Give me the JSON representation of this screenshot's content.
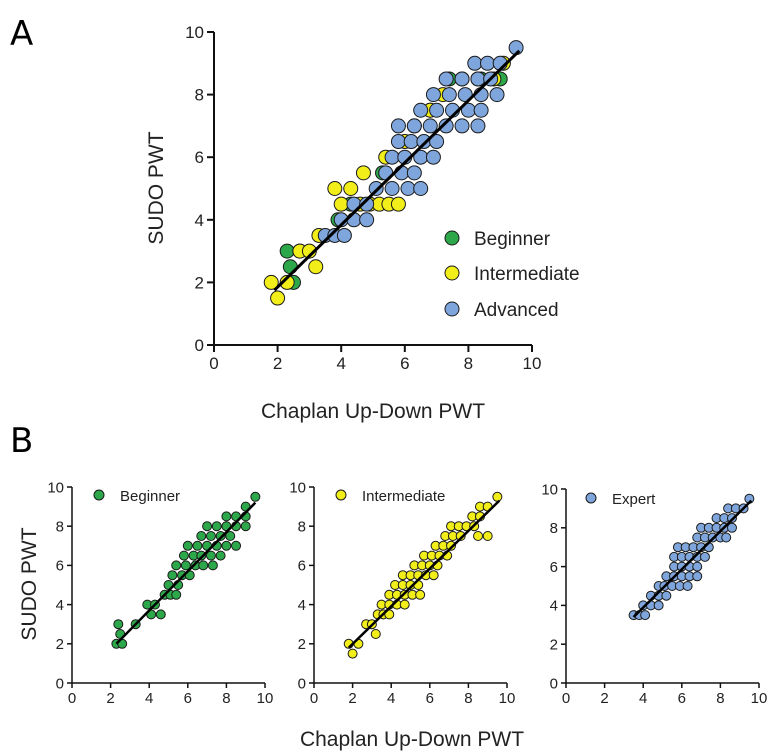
{
  "colors": {
    "beginner": "#2ca84a",
    "intermediate": "#f2ee1a",
    "advanced": "#7fa6dc",
    "outline": "#1a1a1a",
    "fit_line": "#000000"
  },
  "chart_data": [
    {
      "panel": "A",
      "type": "scatter",
      "xlabel": "Chaplan Up-Down PWT",
      "ylabel": "SUDO PWT",
      "xlim": [
        0,
        10
      ],
      "ylim": [
        0,
        10
      ],
      "xticks": [
        "0",
        "2",
        "4",
        "6",
        "8",
        "10"
      ],
      "yticks": [
        "0",
        "2",
        "4",
        "6",
        "8",
        "10"
      ],
      "legend_position": "lower-right",
      "grid": false,
      "fit_line": {
        "x": [
          1.9,
          9.6
        ],
        "y": [
          1.75,
          9.4
        ]
      },
      "series": [
        {
          "name": "Beginner",
          "color_key": "beginner",
          "points": [
            [
              2.3,
              3.0
            ],
            [
              2.4,
              2.5
            ],
            [
              2.5,
              2.0
            ],
            [
              2.7,
              3.0
            ],
            [
              3.9,
              4.0
            ],
            [
              4.3,
              4.5
            ],
            [
              5.3,
              5.5
            ],
            [
              6.8,
              7.5
            ],
            [
              7.4,
              8.5
            ],
            [
              8.4,
              8.5
            ],
            [
              9.0,
              8.5
            ]
          ]
        },
        {
          "name": "Intermediate",
          "color_key": "intermediate",
          "points": [
            [
              1.8,
              2.0
            ],
            [
              2.0,
              1.5
            ],
            [
              2.3,
              2.0
            ],
            [
              2.7,
              3.0
            ],
            [
              3.0,
              3.0
            ],
            [
              3.2,
              2.5
            ],
            [
              3.3,
              3.5
            ],
            [
              3.8,
              5.0
            ],
            [
              4.0,
              4.5
            ],
            [
              4.3,
              5.0
            ],
            [
              4.6,
              4.5
            ],
            [
              4.9,
              4.5
            ],
            [
              5.2,
              4.5
            ],
            [
              5.5,
              4.5
            ],
            [
              5.8,
              4.5
            ],
            [
              4.7,
              5.5
            ],
            [
              5.4,
              6.0
            ],
            [
              6.0,
              6.5
            ],
            [
              6.3,
              7.0
            ],
            [
              6.8,
              7.5
            ],
            [
              7.2,
              8.0
            ],
            [
              7.8,
              8.5
            ],
            [
              8.3,
              8.5
            ],
            [
              8.8,
              8.5
            ],
            [
              9.1,
              9.0
            ]
          ]
        },
        {
          "name": "Advanced",
          "color_key": "advanced",
          "points": [
            [
              3.5,
              3.5
            ],
            [
              3.8,
              3.5
            ],
            [
              4.1,
              3.5
            ],
            [
              4.0,
              4.0
            ],
            [
              4.4,
              4.0
            ],
            [
              4.8,
              4.0
            ],
            [
              4.4,
              4.5
            ],
            [
              4.8,
              4.5
            ],
            [
              5.1,
              5.0
            ],
            [
              5.6,
              5.0
            ],
            [
              6.1,
              5.0
            ],
            [
              6.5,
              5.0
            ],
            [
              5.4,
              5.5
            ],
            [
              5.9,
              5.5
            ],
            [
              6.3,
              5.5
            ],
            [
              5.6,
              6.0
            ],
            [
              6.0,
              6.0
            ],
            [
              6.5,
              6.0
            ],
            [
              6.9,
              6.0
            ],
            [
              5.8,
              6.5
            ],
            [
              6.2,
              6.5
            ],
            [
              6.6,
              6.5
            ],
            [
              7.0,
              6.5
            ],
            [
              5.8,
              7.0
            ],
            [
              6.3,
              7.0
            ],
            [
              6.8,
              7.0
            ],
            [
              7.3,
              7.0
            ],
            [
              7.8,
              7.0
            ],
            [
              8.3,
              7.0
            ],
            [
              6.5,
              7.5
            ],
            [
              7.0,
              7.5
            ],
            [
              7.5,
              7.5
            ],
            [
              8.0,
              7.5
            ],
            [
              8.4,
              7.5
            ],
            [
              6.9,
              8.0
            ],
            [
              7.4,
              8.0
            ],
            [
              7.9,
              8.0
            ],
            [
              8.4,
              8.0
            ],
            [
              8.9,
              8.0
            ],
            [
              7.3,
              8.5
            ],
            [
              7.8,
              8.5
            ],
            [
              8.3,
              8.5
            ],
            [
              8.7,
              8.5
            ],
            [
              8.2,
              9.0
            ],
            [
              8.6,
              9.0
            ],
            [
              9.0,
              9.0
            ],
            [
              9.5,
              9.5
            ]
          ]
        }
      ]
    },
    {
      "panel": "B",
      "type": "scatter",
      "xlabel": "Chaplan Up-Down PWT",
      "ylabel": "SUDO PWT",
      "subplots": [
        {
          "name": "Beginner",
          "color_key": "beginner",
          "xlim": [
            0,
            10
          ],
          "ylim": [
            0,
            10
          ],
          "xticks": [
            "0",
            "2",
            "4",
            "6",
            "8",
            "10"
          ],
          "yticks": [
            "0",
            "2",
            "4",
            "6",
            "8",
            "10"
          ],
          "fit_line": {
            "x": [
              2.3,
              9.5
            ],
            "y": [
              2.0,
              9.2
            ]
          },
          "points": [
            [
              2.3,
              2.0
            ],
            [
              2.4,
              3.0
            ],
            [
              2.6,
              2.0
            ],
            [
              2.5,
              2.5
            ],
            [
              3.3,
              3.0
            ],
            [
              3.9,
              4.0
            ],
            [
              4.1,
              3.5
            ],
            [
              4.3,
              4.0
            ],
            [
              4.6,
              3.5
            ],
            [
              4.8,
              4.5
            ],
            [
              5.1,
              4.5
            ],
            [
              5.4,
              4.5
            ],
            [
              5.0,
              5.0
            ],
            [
              5.5,
              5.0
            ],
            [
              5.2,
              5.5
            ],
            [
              5.7,
              5.5
            ],
            [
              6.1,
              5.5
            ],
            [
              5.4,
              6.0
            ],
            [
              5.9,
              6.0
            ],
            [
              6.4,
              6.0
            ],
            [
              6.8,
              6.0
            ],
            [
              7.3,
              6.0
            ],
            [
              5.8,
              6.5
            ],
            [
              6.3,
              6.5
            ],
            [
              6.7,
              6.5
            ],
            [
              7.2,
              6.5
            ],
            [
              7.7,
              6.5
            ],
            [
              6.0,
              7.0
            ],
            [
              6.5,
              7.0
            ],
            [
              7.0,
              7.0
            ],
            [
              7.5,
              7.0
            ],
            [
              8.0,
              7.0
            ],
            [
              8.5,
              7.0
            ],
            [
              6.7,
              7.5
            ],
            [
              7.2,
              7.5
            ],
            [
              7.7,
              7.5
            ],
            [
              8.2,
              7.5
            ],
            [
              7.0,
              8.0
            ],
            [
              7.5,
              8.0
            ],
            [
              8.0,
              8.0
            ],
            [
              8.5,
              8.0
            ],
            [
              9.0,
              8.0
            ],
            [
              8.0,
              8.5
            ],
            [
              8.5,
              8.5
            ],
            [
              9.0,
              8.5
            ],
            [
              9.0,
              9.0
            ],
            [
              9.5,
              9.5
            ]
          ]
        },
        {
          "name": "Intermediate",
          "color_key": "intermediate",
          "xlim": [
            0,
            10
          ],
          "ylim": [
            0,
            10
          ],
          "xticks": [
            "0",
            "2",
            "4",
            "6",
            "8",
            "10"
          ],
          "yticks": [
            "0",
            "2",
            "4",
            "6",
            "8",
            "10"
          ],
          "fit_line": {
            "x": [
              1.8,
              9.6
            ],
            "y": [
              1.8,
              9.3
            ]
          },
          "points": [
            [
              1.8,
              2.0
            ],
            [
              2.0,
              1.5
            ],
            [
              2.3,
              2.0
            ],
            [
              2.7,
              3.0
            ],
            [
              3.0,
              3.0
            ],
            [
              3.2,
              2.5
            ],
            [
              3.3,
              3.5
            ],
            [
              3.6,
              3.5
            ],
            [
              3.9,
              3.5
            ],
            [
              3.5,
              4.0
            ],
            [
              3.9,
              4.0
            ],
            [
              4.3,
              4.0
            ],
            [
              4.7,
              4.0
            ],
            [
              3.9,
              4.5
            ],
            [
              4.3,
              4.5
            ],
            [
              4.7,
              4.5
            ],
            [
              5.1,
              4.5
            ],
            [
              5.5,
              4.5
            ],
            [
              4.2,
              5.0
            ],
            [
              4.6,
              5.0
            ],
            [
              5.0,
              5.0
            ],
            [
              5.4,
              5.0
            ],
            [
              4.6,
              5.5
            ],
            [
              5.0,
              5.5
            ],
            [
              5.4,
              5.5
            ],
            [
              5.8,
              5.5
            ],
            [
              6.2,
              5.5
            ],
            [
              5.2,
              6.0
            ],
            [
              5.6,
              6.0
            ],
            [
              6.0,
              6.0
            ],
            [
              6.4,
              6.0
            ],
            [
              5.7,
              6.5
            ],
            [
              6.1,
              6.5
            ],
            [
              6.5,
              6.5
            ],
            [
              6.9,
              6.5
            ],
            [
              6.3,
              7.0
            ],
            [
              6.7,
              7.0
            ],
            [
              7.1,
              7.0
            ],
            [
              6.8,
              7.5
            ],
            [
              7.2,
              7.5
            ],
            [
              7.6,
              7.5
            ],
            [
              8.5,
              7.5
            ],
            [
              9.0,
              7.5
            ],
            [
              7.1,
              8.0
            ],
            [
              7.5,
              8.0
            ],
            [
              7.9,
              8.0
            ],
            [
              8.3,
              8.0
            ],
            [
              8.2,
              8.5
            ],
            [
              8.6,
              8.5
            ],
            [
              8.6,
              9.0
            ],
            [
              9.0,
              9.0
            ],
            [
              9.5,
              9.5
            ]
          ]
        },
        {
          "name": "Expert",
          "color_key": "advanced",
          "xlim": [
            0,
            10
          ],
          "ylim": [
            0,
            10
          ],
          "xticks": [
            "0",
            "2",
            "4",
            "6",
            "8",
            "10"
          ],
          "yticks": [
            "0",
            "2",
            "4",
            "6",
            "8",
            "10"
          ],
          "fit_line": {
            "x": [
              3.5,
              9.6
            ],
            "y": [
              3.4,
              9.4
            ]
          },
          "points": [
            [
              3.5,
              3.5
            ],
            [
              3.8,
              3.5
            ],
            [
              4.1,
              3.5
            ],
            [
              4.0,
              4.0
            ],
            [
              4.4,
              4.0
            ],
            [
              4.8,
              4.0
            ],
            [
              4.4,
              4.5
            ],
            [
              4.8,
              4.5
            ],
            [
              5.2,
              4.5
            ],
            [
              4.8,
              5.0
            ],
            [
              5.1,
              5.0
            ],
            [
              5.5,
              5.0
            ],
            [
              5.9,
              5.0
            ],
            [
              6.3,
              5.0
            ],
            [
              5.2,
              5.5
            ],
            [
              5.6,
              5.5
            ],
            [
              6.0,
              5.5
            ],
            [
              6.4,
              5.5
            ],
            [
              6.8,
              5.5
            ],
            [
              5.6,
              6.0
            ],
            [
              6.0,
              6.0
            ],
            [
              6.4,
              6.0
            ],
            [
              6.8,
              6.0
            ],
            [
              5.6,
              6.5
            ],
            [
              6.0,
              6.5
            ],
            [
              6.4,
              6.5
            ],
            [
              6.8,
              6.5
            ],
            [
              7.2,
              6.5
            ],
            [
              5.8,
              7.0
            ],
            [
              6.2,
              7.0
            ],
            [
              6.6,
              7.0
            ],
            [
              7.0,
              7.0
            ],
            [
              7.4,
              7.0
            ],
            [
              6.8,
              7.5
            ],
            [
              7.2,
              7.5
            ],
            [
              7.6,
              7.5
            ],
            [
              8.0,
              7.5
            ],
            [
              8.3,
              7.5
            ],
            [
              7.0,
              8.0
            ],
            [
              7.4,
              8.0
            ],
            [
              7.8,
              8.0
            ],
            [
              8.2,
              8.0
            ],
            [
              8.6,
              8.0
            ],
            [
              7.8,
              8.5
            ],
            [
              8.2,
              8.5
            ],
            [
              8.6,
              8.5
            ],
            [
              8.4,
              9.0
            ],
            [
              8.8,
              9.0
            ],
            [
              9.2,
              9.0
            ],
            [
              9.5,
              9.5
            ]
          ]
        }
      ]
    }
  ]
}
